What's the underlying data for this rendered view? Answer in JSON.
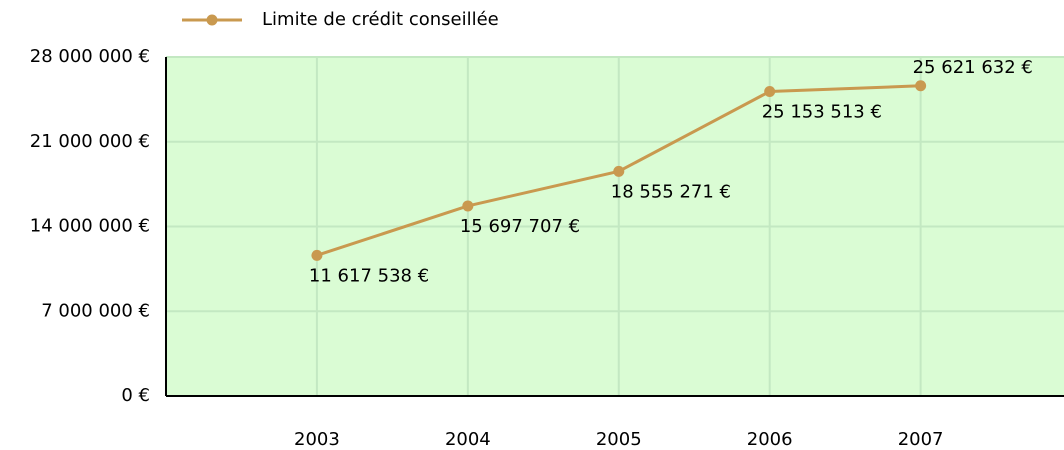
{
  "chart_data": {
    "type": "line",
    "categories": [
      "2003",
      "2004",
      "2005",
      "2006",
      "2007"
    ],
    "series": [
      {
        "name": "Limite de crédit conseillée",
        "color": "#c9994f",
        "values": [
          11617538,
          15697707,
          18555271,
          25153513,
          25621632
        ],
        "value_labels": [
          "11 617 538 €",
          "15 697 707 €",
          "18 555 271 €",
          "25 153 513 €",
          "25 621 632 €"
        ]
      }
    ],
    "ylim": [
      0,
      28000000
    ],
    "yticks": [
      {
        "value": 0,
        "label": "0 €"
      },
      {
        "value": 7000000,
        "label": "7 000 000 €"
      },
      {
        "value": 14000000,
        "label": "14 000 000 €"
      },
      {
        "value": 21000000,
        "label": "21 000 000 €"
      },
      {
        "value": 28000000,
        "label": "28 000 000 €"
      }
    ],
    "grid": true,
    "background": "#dafcd4",
    "legend": "top"
  }
}
